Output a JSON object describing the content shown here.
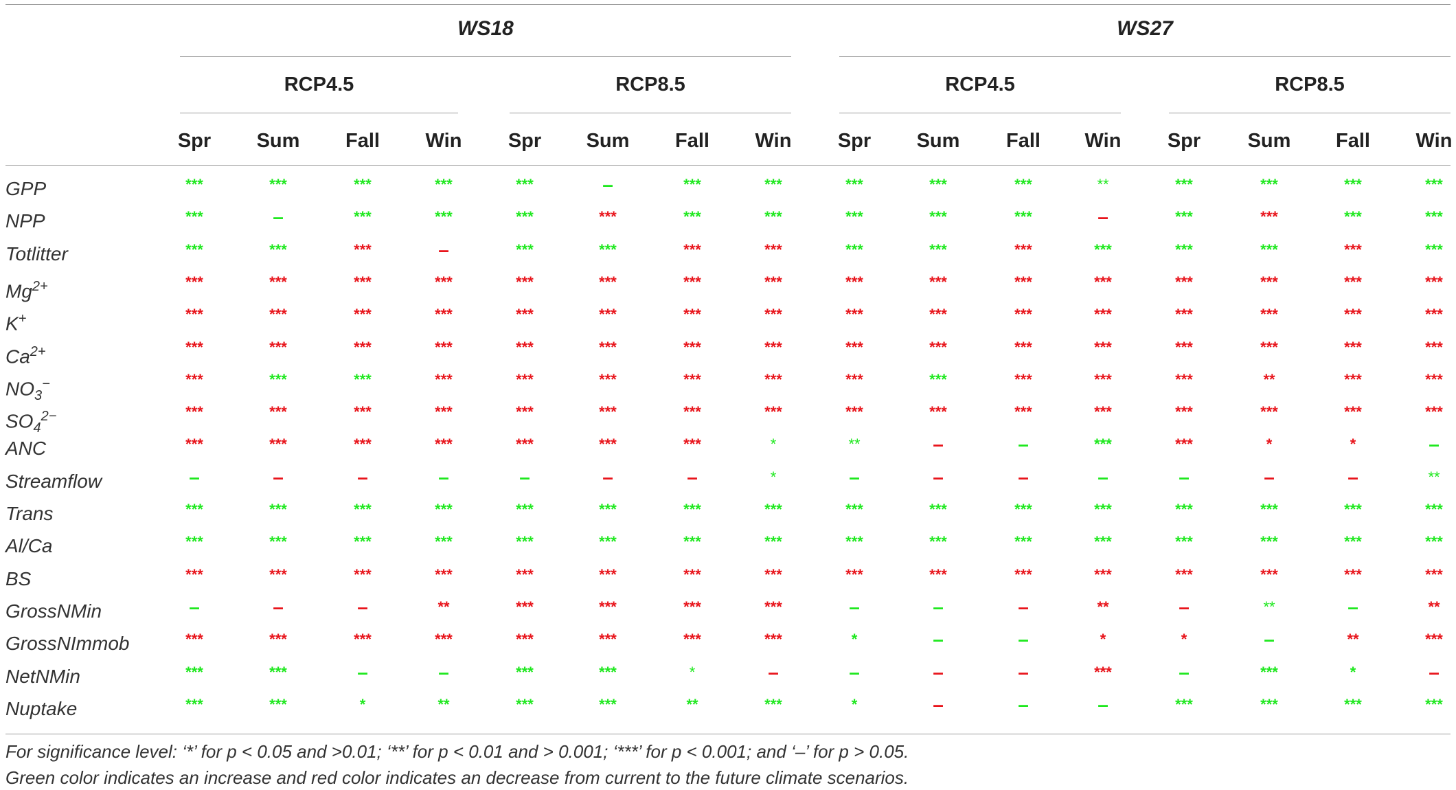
{
  "groups": [
    {
      "label": "WS18",
      "scenarios": [
        "RCP4.5",
        "RCP8.5"
      ]
    },
    {
      "label": "WS27",
      "scenarios": [
        "RCP4.5",
        "RCP8.5"
      ]
    }
  ],
  "seasons": [
    "Spr",
    "Sum",
    "Fall",
    "Win"
  ],
  "colors": {
    "increase": "#1ee81e",
    "decrease": "#e8141b"
  },
  "rows": [
    {
      "base": "GPP",
      "sup": "",
      "sub": "",
      "cells": [
        [
          "g",
          "***"
        ],
        [
          "g",
          "***"
        ],
        [
          "g",
          "***"
        ],
        [
          "g",
          "***"
        ],
        [
          "g",
          "***"
        ],
        [
          "g",
          "–"
        ],
        [
          "g",
          "***"
        ],
        [
          "g",
          "***"
        ],
        [
          "g",
          "***"
        ],
        [
          "g",
          "***"
        ],
        [
          "g",
          "***"
        ],
        [
          "gl",
          "**"
        ],
        [
          "g",
          "***"
        ],
        [
          "g",
          "***"
        ],
        [
          "g",
          "***"
        ],
        [
          "g",
          "***"
        ]
      ]
    },
    {
      "base": "NPP",
      "sup": "",
      "sub": "",
      "cells": [
        [
          "g",
          "***"
        ],
        [
          "g",
          "–"
        ],
        [
          "g",
          "***"
        ],
        [
          "g",
          "***"
        ],
        [
          "g",
          "***"
        ],
        [
          "r",
          "***"
        ],
        [
          "g",
          "***"
        ],
        [
          "g",
          "***"
        ],
        [
          "g",
          "***"
        ],
        [
          "g",
          "***"
        ],
        [
          "g",
          "***"
        ],
        [
          "r",
          "–"
        ],
        [
          "g",
          "***"
        ],
        [
          "r",
          "***"
        ],
        [
          "g",
          "***"
        ],
        [
          "g",
          "***"
        ]
      ]
    },
    {
      "base": "Totlitter",
      "sup": "",
      "sub": "",
      "cells": [
        [
          "g",
          "***"
        ],
        [
          "g",
          "***"
        ],
        [
          "r",
          "***"
        ],
        [
          "r",
          "–"
        ],
        [
          "g",
          "***"
        ],
        [
          "g",
          "***"
        ],
        [
          "r",
          "***"
        ],
        [
          "r",
          "***"
        ],
        [
          "g",
          "***"
        ],
        [
          "g",
          "***"
        ],
        [
          "r",
          "***"
        ],
        [
          "g",
          "***"
        ],
        [
          "g",
          "***"
        ],
        [
          "g",
          "***"
        ],
        [
          "r",
          "***"
        ],
        [
          "g",
          "***"
        ]
      ]
    },
    {
      "base": "Mg",
      "sup": "2+",
      "sub": "",
      "cells": [
        [
          "r",
          "***"
        ],
        [
          "r",
          "***"
        ],
        [
          "r",
          "***"
        ],
        [
          "r",
          "***"
        ],
        [
          "r",
          "***"
        ],
        [
          "r",
          "***"
        ],
        [
          "r",
          "***"
        ],
        [
          "r",
          "***"
        ],
        [
          "r",
          "***"
        ],
        [
          "r",
          "***"
        ],
        [
          "r",
          "***"
        ],
        [
          "r",
          "***"
        ],
        [
          "r",
          "***"
        ],
        [
          "r",
          "***"
        ],
        [
          "r",
          "***"
        ],
        [
          "r",
          "***"
        ]
      ]
    },
    {
      "base": "K",
      "sup": "+",
      "sub": "",
      "cells": [
        [
          "r",
          "***"
        ],
        [
          "r",
          "***"
        ],
        [
          "r",
          "***"
        ],
        [
          "r",
          "***"
        ],
        [
          "r",
          "***"
        ],
        [
          "r",
          "***"
        ],
        [
          "r",
          "***"
        ],
        [
          "r",
          "***"
        ],
        [
          "r",
          "***"
        ],
        [
          "r",
          "***"
        ],
        [
          "r",
          "***"
        ],
        [
          "r",
          "***"
        ],
        [
          "r",
          "***"
        ],
        [
          "r",
          "***"
        ],
        [
          "r",
          "***"
        ],
        [
          "r",
          "***"
        ]
      ]
    },
    {
      "base": "Ca",
      "sup": "2+",
      "sub": "",
      "cells": [
        [
          "r",
          "***"
        ],
        [
          "r",
          "***"
        ],
        [
          "r",
          "***"
        ],
        [
          "r",
          "***"
        ],
        [
          "r",
          "***"
        ],
        [
          "r",
          "***"
        ],
        [
          "r",
          "***"
        ],
        [
          "r",
          "***"
        ],
        [
          "r",
          "***"
        ],
        [
          "r",
          "***"
        ],
        [
          "r",
          "***"
        ],
        [
          "r",
          "***"
        ],
        [
          "r",
          "***"
        ],
        [
          "r",
          "***"
        ],
        [
          "r",
          "***"
        ],
        [
          "r",
          "***"
        ]
      ]
    },
    {
      "base": "NO",
      "sup": "−",
      "sub": "3",
      "cells": [
        [
          "r",
          "***"
        ],
        [
          "g",
          "***"
        ],
        [
          "g",
          "***"
        ],
        [
          "r",
          "***"
        ],
        [
          "r",
          "***"
        ],
        [
          "r",
          "***"
        ],
        [
          "r",
          "***"
        ],
        [
          "r",
          "***"
        ],
        [
          "r",
          "***"
        ],
        [
          "g",
          "***"
        ],
        [
          "r",
          "***"
        ],
        [
          "r",
          "***"
        ],
        [
          "r",
          "***"
        ],
        [
          "r",
          "**"
        ],
        [
          "r",
          "***"
        ],
        [
          "r",
          "***"
        ]
      ]
    },
    {
      "base": "SO",
      "sup": "2−",
      "sub": "4",
      "cells": [
        [
          "r",
          "***"
        ],
        [
          "r",
          "***"
        ],
        [
          "r",
          "***"
        ],
        [
          "r",
          "***"
        ],
        [
          "r",
          "***"
        ],
        [
          "r",
          "***"
        ],
        [
          "r",
          "***"
        ],
        [
          "r",
          "***"
        ],
        [
          "r",
          "***"
        ],
        [
          "r",
          "***"
        ],
        [
          "r",
          "***"
        ],
        [
          "r",
          "***"
        ],
        [
          "r",
          "***"
        ],
        [
          "r",
          "***"
        ],
        [
          "r",
          "***"
        ],
        [
          "r",
          "***"
        ]
      ]
    },
    {
      "base": "ANC",
      "sup": "",
      "sub": "",
      "cells": [
        [
          "r",
          "***"
        ],
        [
          "r",
          "***"
        ],
        [
          "r",
          "***"
        ],
        [
          "r",
          "***"
        ],
        [
          "r",
          "***"
        ],
        [
          "r",
          "***"
        ],
        [
          "r",
          "***"
        ],
        [
          "gl",
          "*"
        ],
        [
          "gl",
          "**"
        ],
        [
          "r",
          "–"
        ],
        [
          "g",
          "–"
        ],
        [
          "g",
          "***"
        ],
        [
          "r",
          "***"
        ],
        [
          "r",
          "*"
        ],
        [
          "r",
          "*"
        ],
        [
          "g",
          "–"
        ]
      ]
    },
    {
      "base": "Streamflow",
      "sup": "",
      "sub": "",
      "cells": [
        [
          "g",
          "–"
        ],
        [
          "r",
          "–"
        ],
        [
          "r",
          "–"
        ],
        [
          "g",
          "–"
        ],
        [
          "g",
          "–"
        ],
        [
          "r",
          "–"
        ],
        [
          "r",
          "–"
        ],
        [
          "gl",
          "*"
        ],
        [
          "g",
          "–"
        ],
        [
          "r",
          "–"
        ],
        [
          "r",
          "–"
        ],
        [
          "g",
          "–"
        ],
        [
          "g",
          "–"
        ],
        [
          "r",
          "–"
        ],
        [
          "r",
          "–"
        ],
        [
          "gl",
          "**"
        ]
      ]
    },
    {
      "base": "Trans",
      "sup": "",
      "sub": "",
      "cells": [
        [
          "g",
          "***"
        ],
        [
          "g",
          "***"
        ],
        [
          "g",
          "***"
        ],
        [
          "g",
          "***"
        ],
        [
          "g",
          "***"
        ],
        [
          "g",
          "***"
        ],
        [
          "g",
          "***"
        ],
        [
          "g",
          "***"
        ],
        [
          "g",
          "***"
        ],
        [
          "g",
          "***"
        ],
        [
          "g",
          "***"
        ],
        [
          "g",
          "***"
        ],
        [
          "g",
          "***"
        ],
        [
          "g",
          "***"
        ],
        [
          "g",
          "***"
        ],
        [
          "g",
          "***"
        ]
      ]
    },
    {
      "base": "Al/Ca",
      "sup": "",
      "sub": "",
      "cells": [
        [
          "g",
          "***"
        ],
        [
          "g",
          "***"
        ],
        [
          "g",
          "***"
        ],
        [
          "g",
          "***"
        ],
        [
          "g",
          "***"
        ],
        [
          "g",
          "***"
        ],
        [
          "g",
          "***"
        ],
        [
          "g",
          "***"
        ],
        [
          "g",
          "***"
        ],
        [
          "g",
          "***"
        ],
        [
          "g",
          "***"
        ],
        [
          "g",
          "***"
        ],
        [
          "g",
          "***"
        ],
        [
          "g",
          "***"
        ],
        [
          "g",
          "***"
        ],
        [
          "g",
          "***"
        ]
      ]
    },
    {
      "base": "BS",
      "sup": "",
      "sub": "",
      "cells": [
        [
          "r",
          "***"
        ],
        [
          "r",
          "***"
        ],
        [
          "r",
          "***"
        ],
        [
          "r",
          "***"
        ],
        [
          "r",
          "***"
        ],
        [
          "r",
          "***"
        ],
        [
          "r",
          "***"
        ],
        [
          "r",
          "***"
        ],
        [
          "r",
          "***"
        ],
        [
          "r",
          "***"
        ],
        [
          "r",
          "***"
        ],
        [
          "r",
          "***"
        ],
        [
          "r",
          "***"
        ],
        [
          "r",
          "***"
        ],
        [
          "r",
          "***"
        ],
        [
          "r",
          "***"
        ]
      ]
    },
    {
      "base": "GrossNMin",
      "sup": "",
      "sub": "",
      "cells": [
        [
          "g",
          "–"
        ],
        [
          "r",
          "–"
        ],
        [
          "r",
          "–"
        ],
        [
          "r",
          "**"
        ],
        [
          "r",
          "***"
        ],
        [
          "r",
          "***"
        ],
        [
          "r",
          "***"
        ],
        [
          "r",
          "***"
        ],
        [
          "g",
          "–"
        ],
        [
          "g",
          "–"
        ],
        [
          "r",
          "–"
        ],
        [
          "r",
          "**"
        ],
        [
          "r",
          "–"
        ],
        [
          "gl",
          "**"
        ],
        [
          "g",
          "–"
        ],
        [
          "r",
          "**"
        ]
      ]
    },
    {
      "base": "GrossNImmob",
      "sup": "",
      "sub": "",
      "cells": [
        [
          "r",
          "***"
        ],
        [
          "r",
          "***"
        ],
        [
          "r",
          "***"
        ],
        [
          "r",
          "***"
        ],
        [
          "r",
          "***"
        ],
        [
          "r",
          "***"
        ],
        [
          "r",
          "***"
        ],
        [
          "r",
          "***"
        ],
        [
          "g",
          "*"
        ],
        [
          "g",
          "–"
        ],
        [
          "g",
          "–"
        ],
        [
          "r",
          "*"
        ],
        [
          "r",
          "*"
        ],
        [
          "g",
          "–"
        ],
        [
          "r",
          "**"
        ],
        [
          "r",
          "***"
        ]
      ]
    },
    {
      "base": "NetNMin",
      "sup": "",
      "sub": "",
      "cells": [
        [
          "g",
          "***"
        ],
        [
          "g",
          "***"
        ],
        [
          "g",
          "–"
        ],
        [
          "g",
          "–"
        ],
        [
          "g",
          "***"
        ],
        [
          "g",
          "***"
        ],
        [
          "gl",
          "*"
        ],
        [
          "r",
          "–"
        ],
        [
          "g",
          "–"
        ],
        [
          "r",
          "–"
        ],
        [
          "r",
          "–"
        ],
        [
          "r",
          "***"
        ],
        [
          "g",
          "–"
        ],
        [
          "g",
          "***"
        ],
        [
          "g",
          "*"
        ],
        [
          "r",
          "–"
        ]
      ]
    },
    {
      "base": "Nuptake",
      "sup": "",
      "sub": "",
      "cells": [
        [
          "g",
          "***"
        ],
        [
          "g",
          "***"
        ],
        [
          "g",
          "*"
        ],
        [
          "g",
          "**"
        ],
        [
          "g",
          "***"
        ],
        [
          "g",
          "***"
        ],
        [
          "g",
          "**"
        ],
        [
          "g",
          "***"
        ],
        [
          "g",
          "*"
        ],
        [
          "r",
          "–"
        ],
        [
          "g",
          "–"
        ],
        [
          "g",
          "–"
        ],
        [
          "g",
          "***"
        ],
        [
          "g",
          "***"
        ],
        [
          "g",
          "***"
        ],
        [
          "g",
          "***"
        ]
      ]
    }
  ],
  "footnotes": [
    "For significance level: ‘*’ for p <  0.05 and >0.01; ‘**’ for p < 0.01 and > 0.001; ‘***’ for p < 0.001; and ‘–’ for p > 0.05.",
    "Green color indicates an increase and red color indicates an decrease from current to the future climate scenarios."
  ]
}
